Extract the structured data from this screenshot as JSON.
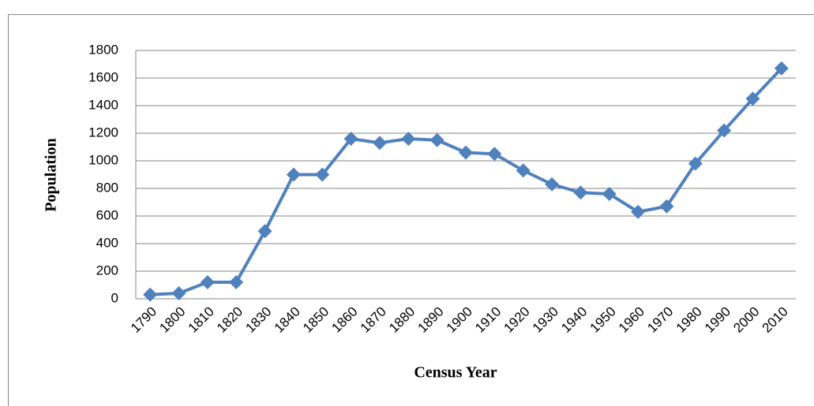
{
  "chart_data": {
    "type": "line",
    "categories": [
      "1790",
      "1800",
      "1810",
      "1820",
      "1830",
      "1840",
      "1850",
      "1860",
      "1870",
      "1880",
      "1890",
      "1900",
      "1910",
      "1920",
      "1930",
      "1940",
      "1950",
      "1960",
      "1970",
      "1980",
      "1990",
      "2000",
      "2010"
    ],
    "series": [
      {
        "name": "Population",
        "color": "#4f81bd",
        "values": [
          30,
          40,
          120,
          120,
          490,
          900,
          900,
          1160,
          1130,
          1160,
          1150,
          1060,
          1050,
          930,
          830,
          770,
          760,
          630,
          670,
          980,
          1220,
          1450,
          1670
        ]
      }
    ],
    "ylim": [
      0,
      1800
    ],
    "yticks": [
      0,
      200,
      400,
      600,
      800,
      1000,
      1200,
      1400,
      1600,
      1800
    ],
    "grid": true,
    "ylabel": "Population",
    "xlabel": "Census Year"
  }
}
